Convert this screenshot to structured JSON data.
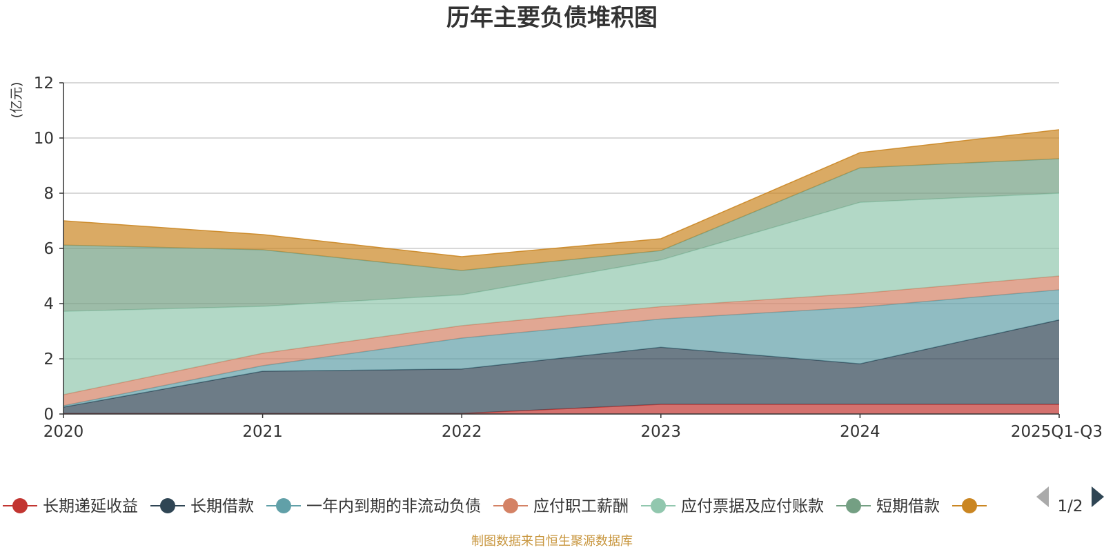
{
  "chart_data": {
    "type": "area",
    "stacked": true,
    "title": "历年主要负债堆积图",
    "ylabel": "(亿元)",
    "xlabel": "",
    "ylim": [
      0,
      12
    ],
    "yticks": [
      0,
      2,
      4,
      6,
      8,
      10,
      12
    ],
    "grid": true,
    "categories": [
      "2020",
      "2021",
      "2022",
      "2023",
      "2024",
      "2025Q1-Q3"
    ],
    "series": [
      {
        "name": "长期递延收益",
        "color": "#c23531",
        "values": [
          0.02,
          0.02,
          0.02,
          0.35,
          0.35,
          0.35
        ]
      },
      {
        "name": "长期借款",
        "color": "#2f4554",
        "values": [
          0.23,
          1.53,
          1.61,
          2.07,
          1.47,
          3.06
        ]
      },
      {
        "name": "一年内到期的非流动负债",
        "color": "#61a0a8",
        "values": [
          0.05,
          0.2,
          1.12,
          1.02,
          2.05,
          1.09
        ]
      },
      {
        "name": "应付职工薪酬",
        "color": "#d48265",
        "values": [
          0.4,
          0.45,
          0.45,
          0.45,
          0.5,
          0.5
        ]
      },
      {
        "name": "应付票据及应付账款",
        "color": "#91c7ae",
        "values": [
          3.02,
          1.7,
          1.12,
          1.69,
          3.3,
          3.0
        ]
      },
      {
        "name": "短期借款",
        "color": "#749f83",
        "values": [
          2.4,
          2.05,
          0.88,
          0.34,
          1.25,
          1.25
        ]
      },
      {
        "name": "",
        "color": "#ca8622",
        "values": [
          0.88,
          0.55,
          0.5,
          0.43,
          0.55,
          1.05
        ]
      }
    ]
  },
  "legend": {
    "page": "1/2"
  },
  "source": "制图数据来自恒生聚源数据库",
  "colors": {
    "title": "#333333",
    "ylabel": "#e02020",
    "source": "#c8963e",
    "grid": "#cccccc",
    "axis": "#333333",
    "pager_active": "#2f4554",
    "pager_inactive": "#aaaaaa"
  }
}
